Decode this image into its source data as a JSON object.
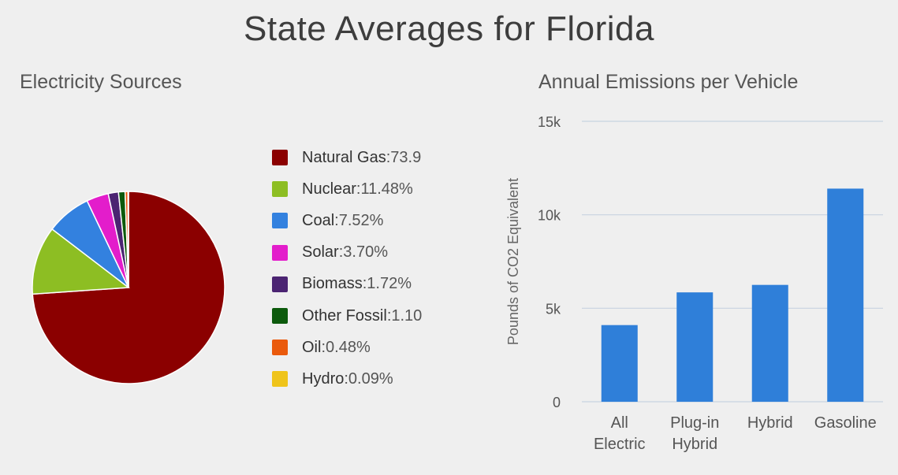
{
  "page_title": "State Averages for Florida",
  "chart_data": [
    {
      "type": "pie",
      "title": "Electricity Sources",
      "slices": [
        {
          "name": "Natural Gas",
          "value": 73.9,
          "value_label": "73.9",
          "color": "#8b0000"
        },
        {
          "name": "Nuclear",
          "value": 11.48,
          "value_label": "11.48%",
          "color": "#8dbe23"
        },
        {
          "name": "Coal",
          "value": 7.52,
          "value_label": "7.52%",
          "color": "#3381df"
        },
        {
          "name": "Solar",
          "value": 3.7,
          "value_label": "3.70%",
          "color": "#e31dcb"
        },
        {
          "name": "Biomass",
          "value": 1.72,
          "value_label": "1.72%",
          "color": "#4b2472"
        },
        {
          "name": "Other Fossil",
          "value": 1.1,
          "value_label": "1.10",
          "color": "#0c5a0c"
        },
        {
          "name": "Oil",
          "value": 0.48,
          "value_label": "0.48%",
          "color": "#ea5a0c"
        },
        {
          "name": "Hydro",
          "value": 0.09,
          "value_label": "0.09%",
          "color": "#efc41a"
        }
      ]
    },
    {
      "type": "bar",
      "title": "Annual Emissions per Vehicle",
      "ylabel": "Pounds of CO2 Equivalent",
      "ylim": [
        0,
        15000
      ],
      "yticks": [
        {
          "value": 0,
          "label": "0"
        },
        {
          "value": 5000,
          "label": "5k"
        },
        {
          "value": 10000,
          "label": "10k"
        },
        {
          "value": 15000,
          "label": "15k"
        }
      ],
      "categories": [
        [
          "All",
          "Electric"
        ],
        [
          "Plug-in",
          "Hybrid"
        ],
        [
          "Hybrid"
        ],
        [
          "Gasoline"
        ]
      ],
      "values": [
        4100,
        5850,
        6250,
        11400
      ],
      "bar_color": "#2f7fd9",
      "grid_color": "#c8d3e0"
    }
  ]
}
